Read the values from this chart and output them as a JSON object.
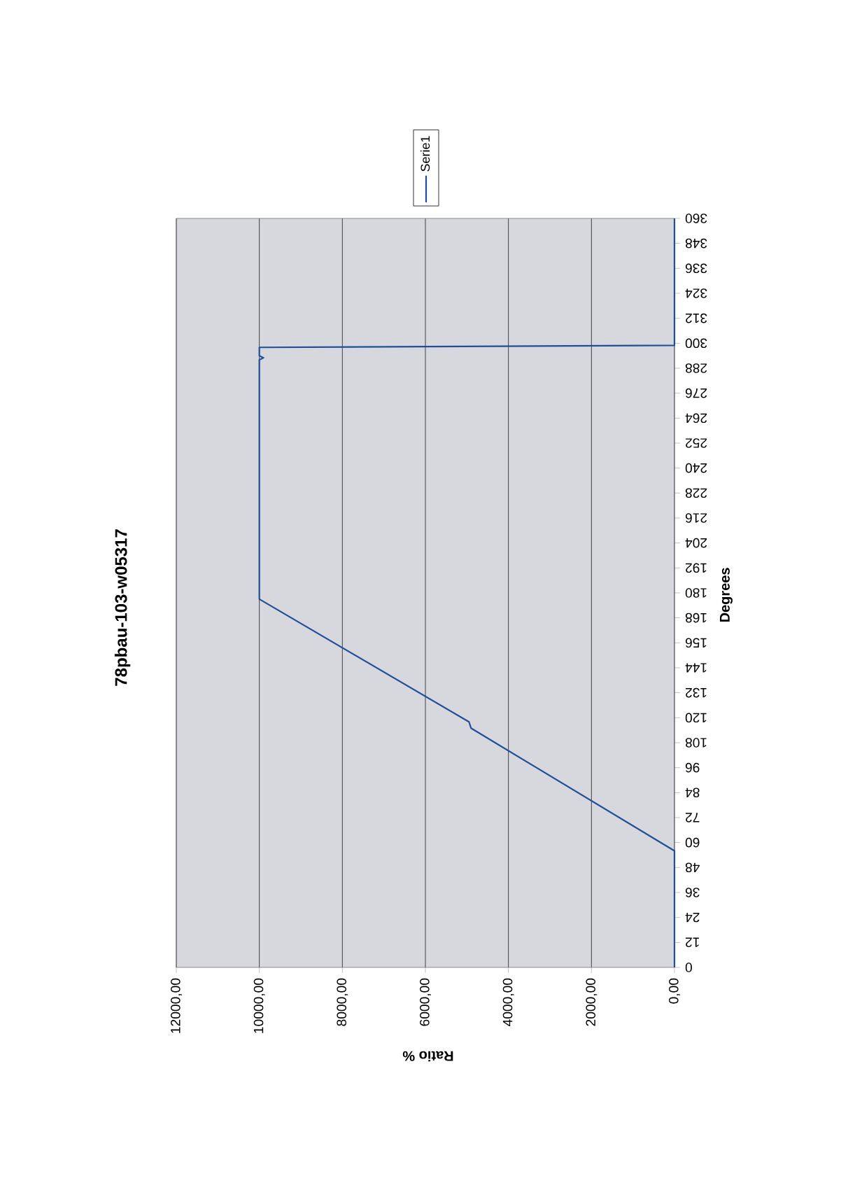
{
  "chart_data": {
    "type": "line",
    "title": "78pbau-103-w05317",
    "xlabel": "Ratio %",
    "ylabel": "Degrees",
    "series": [
      {
        "name": "Serie1",
        "color": "#1f4f99",
        "x": [
          0,
          0,
          4900,
          4950,
          10000,
          10000,
          9900,
          10000,
          10000,
          0,
          0
        ],
        "values": [
          0,
          56,
          115,
          118,
          177,
          292,
          293,
          294,
          298,
          299,
          360
        ]
      }
    ],
    "xlim": [
      12000,
      0
    ],
    "ylim": [
      0,
      360
    ],
    "xticks": [
      {
        "value": 0,
        "label": "0,00"
      },
      {
        "value": 2000,
        "label": "2000,00"
      },
      {
        "value": 4000,
        "label": "4000,00"
      },
      {
        "value": 6000,
        "label": "6000,00"
      },
      {
        "value": 8000,
        "label": "8000,00"
      },
      {
        "value": 10000,
        "label": "10000,00"
      },
      {
        "value": 12000,
        "label": "12000,00"
      }
    ],
    "yticks": [
      0,
      12,
      24,
      36,
      48,
      60,
      72,
      84,
      96,
      108,
      120,
      132,
      144,
      156,
      168,
      180,
      192,
      204,
      216,
      228,
      240,
      252,
      264,
      276,
      288,
      300,
      312,
      324,
      336,
      348,
      360
    ],
    "grid": "x",
    "legend": "top"
  }
}
